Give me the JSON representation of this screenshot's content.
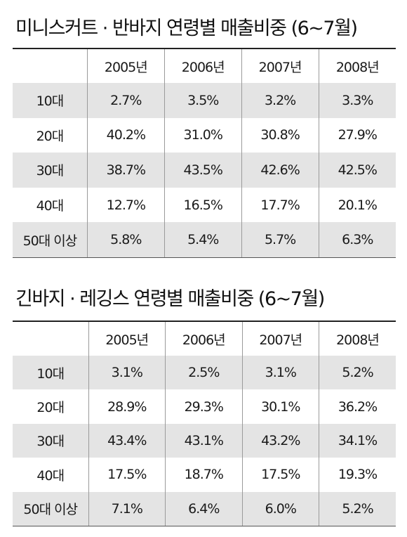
{
  "tables": [
    {
      "title": "미니스커트 · 반바지 연령별 매출비중 (6~7월)",
      "years": [
        "2005년",
        "2006년",
        "2007년",
        "2008년"
      ],
      "rows": [
        {
          "age": "10대",
          "values": [
            "2.7%",
            "3.5%",
            "3.2%",
            "3.3%"
          ]
        },
        {
          "age": "20대",
          "values": [
            "40.2%",
            "31.0%",
            "30.8%",
            "27.9%"
          ]
        },
        {
          "age": "30대",
          "values": [
            "38.7%",
            "43.5%",
            "42.6%",
            "42.5%"
          ]
        },
        {
          "age": "40대",
          "values": [
            "12.7%",
            "16.5%",
            "17.7%",
            "20.1%"
          ]
        },
        {
          "age": "50대 이상",
          "values": [
            "5.8%",
            "5.4%",
            "5.7%",
            "6.3%"
          ]
        }
      ]
    },
    {
      "title": "긴바지 · 레깅스 연령별 매출비중 (6~7월)",
      "years": [
        "2005년",
        "2006년",
        "2007년",
        "2008년"
      ],
      "rows": [
        {
          "age": "10대",
          "values": [
            "3.1%",
            "2.5%",
            "3.1%",
            "5.2%"
          ]
        },
        {
          "age": "20대",
          "values": [
            "28.9%",
            "29.3%",
            "30.1%",
            "36.2%"
          ]
        },
        {
          "age": "30대",
          "values": [
            "43.4%",
            "43.1%",
            "43.2%",
            "34.1%"
          ]
        },
        {
          "age": "40대",
          "values": [
            "17.5%",
            "18.7%",
            "17.5%",
            "19.3%"
          ]
        },
        {
          "age": "50대 이상",
          "values": [
            "7.1%",
            "6.4%",
            "6.0%",
            "5.2%"
          ]
        }
      ]
    }
  ],
  "colors": {
    "row_shade": "#e4e4e4",
    "rule": "#222222",
    "grid": "#9a9a9a"
  }
}
